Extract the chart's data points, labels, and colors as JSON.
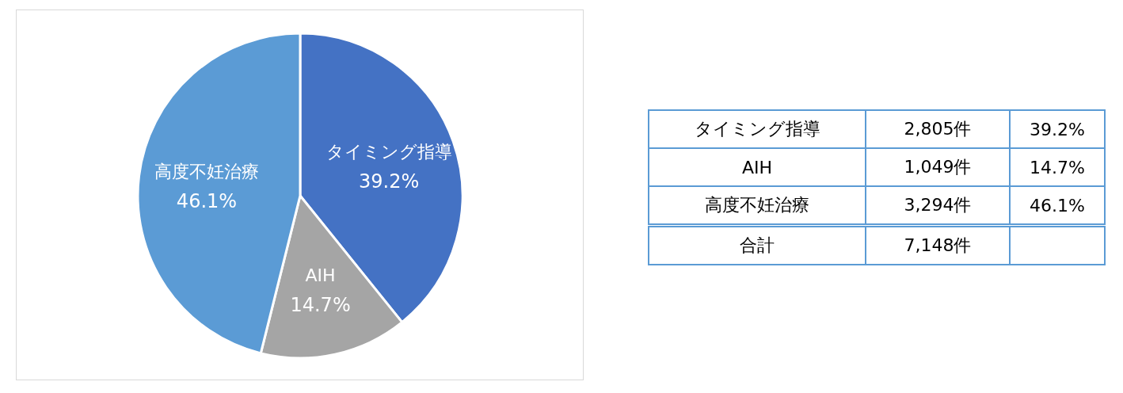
{
  "chart_data": [
    {
      "type": "pie",
      "categories": [
        "タイミング指導",
        "AIH",
        "高度不妊治療"
      ],
      "values": [
        39.2,
        14.7,
        46.1
      ],
      "colors": [
        "#4472c4",
        "#a5a5a5",
        "#5b9bd5"
      ],
      "value_labels": [
        "39.2%",
        "14.7%",
        "46.1%"
      ]
    },
    {
      "type": "other",
      "categories": [
        "タイミング指導",
        "AIH",
        "高度不妊治療",
        "合計"
      ],
      "annotations": [
        "2,805件",
        "39.2%",
        "1,049件",
        "14.7%",
        "3,294件",
        "46.1%",
        "7,148件"
      ]
    }
  ]
}
